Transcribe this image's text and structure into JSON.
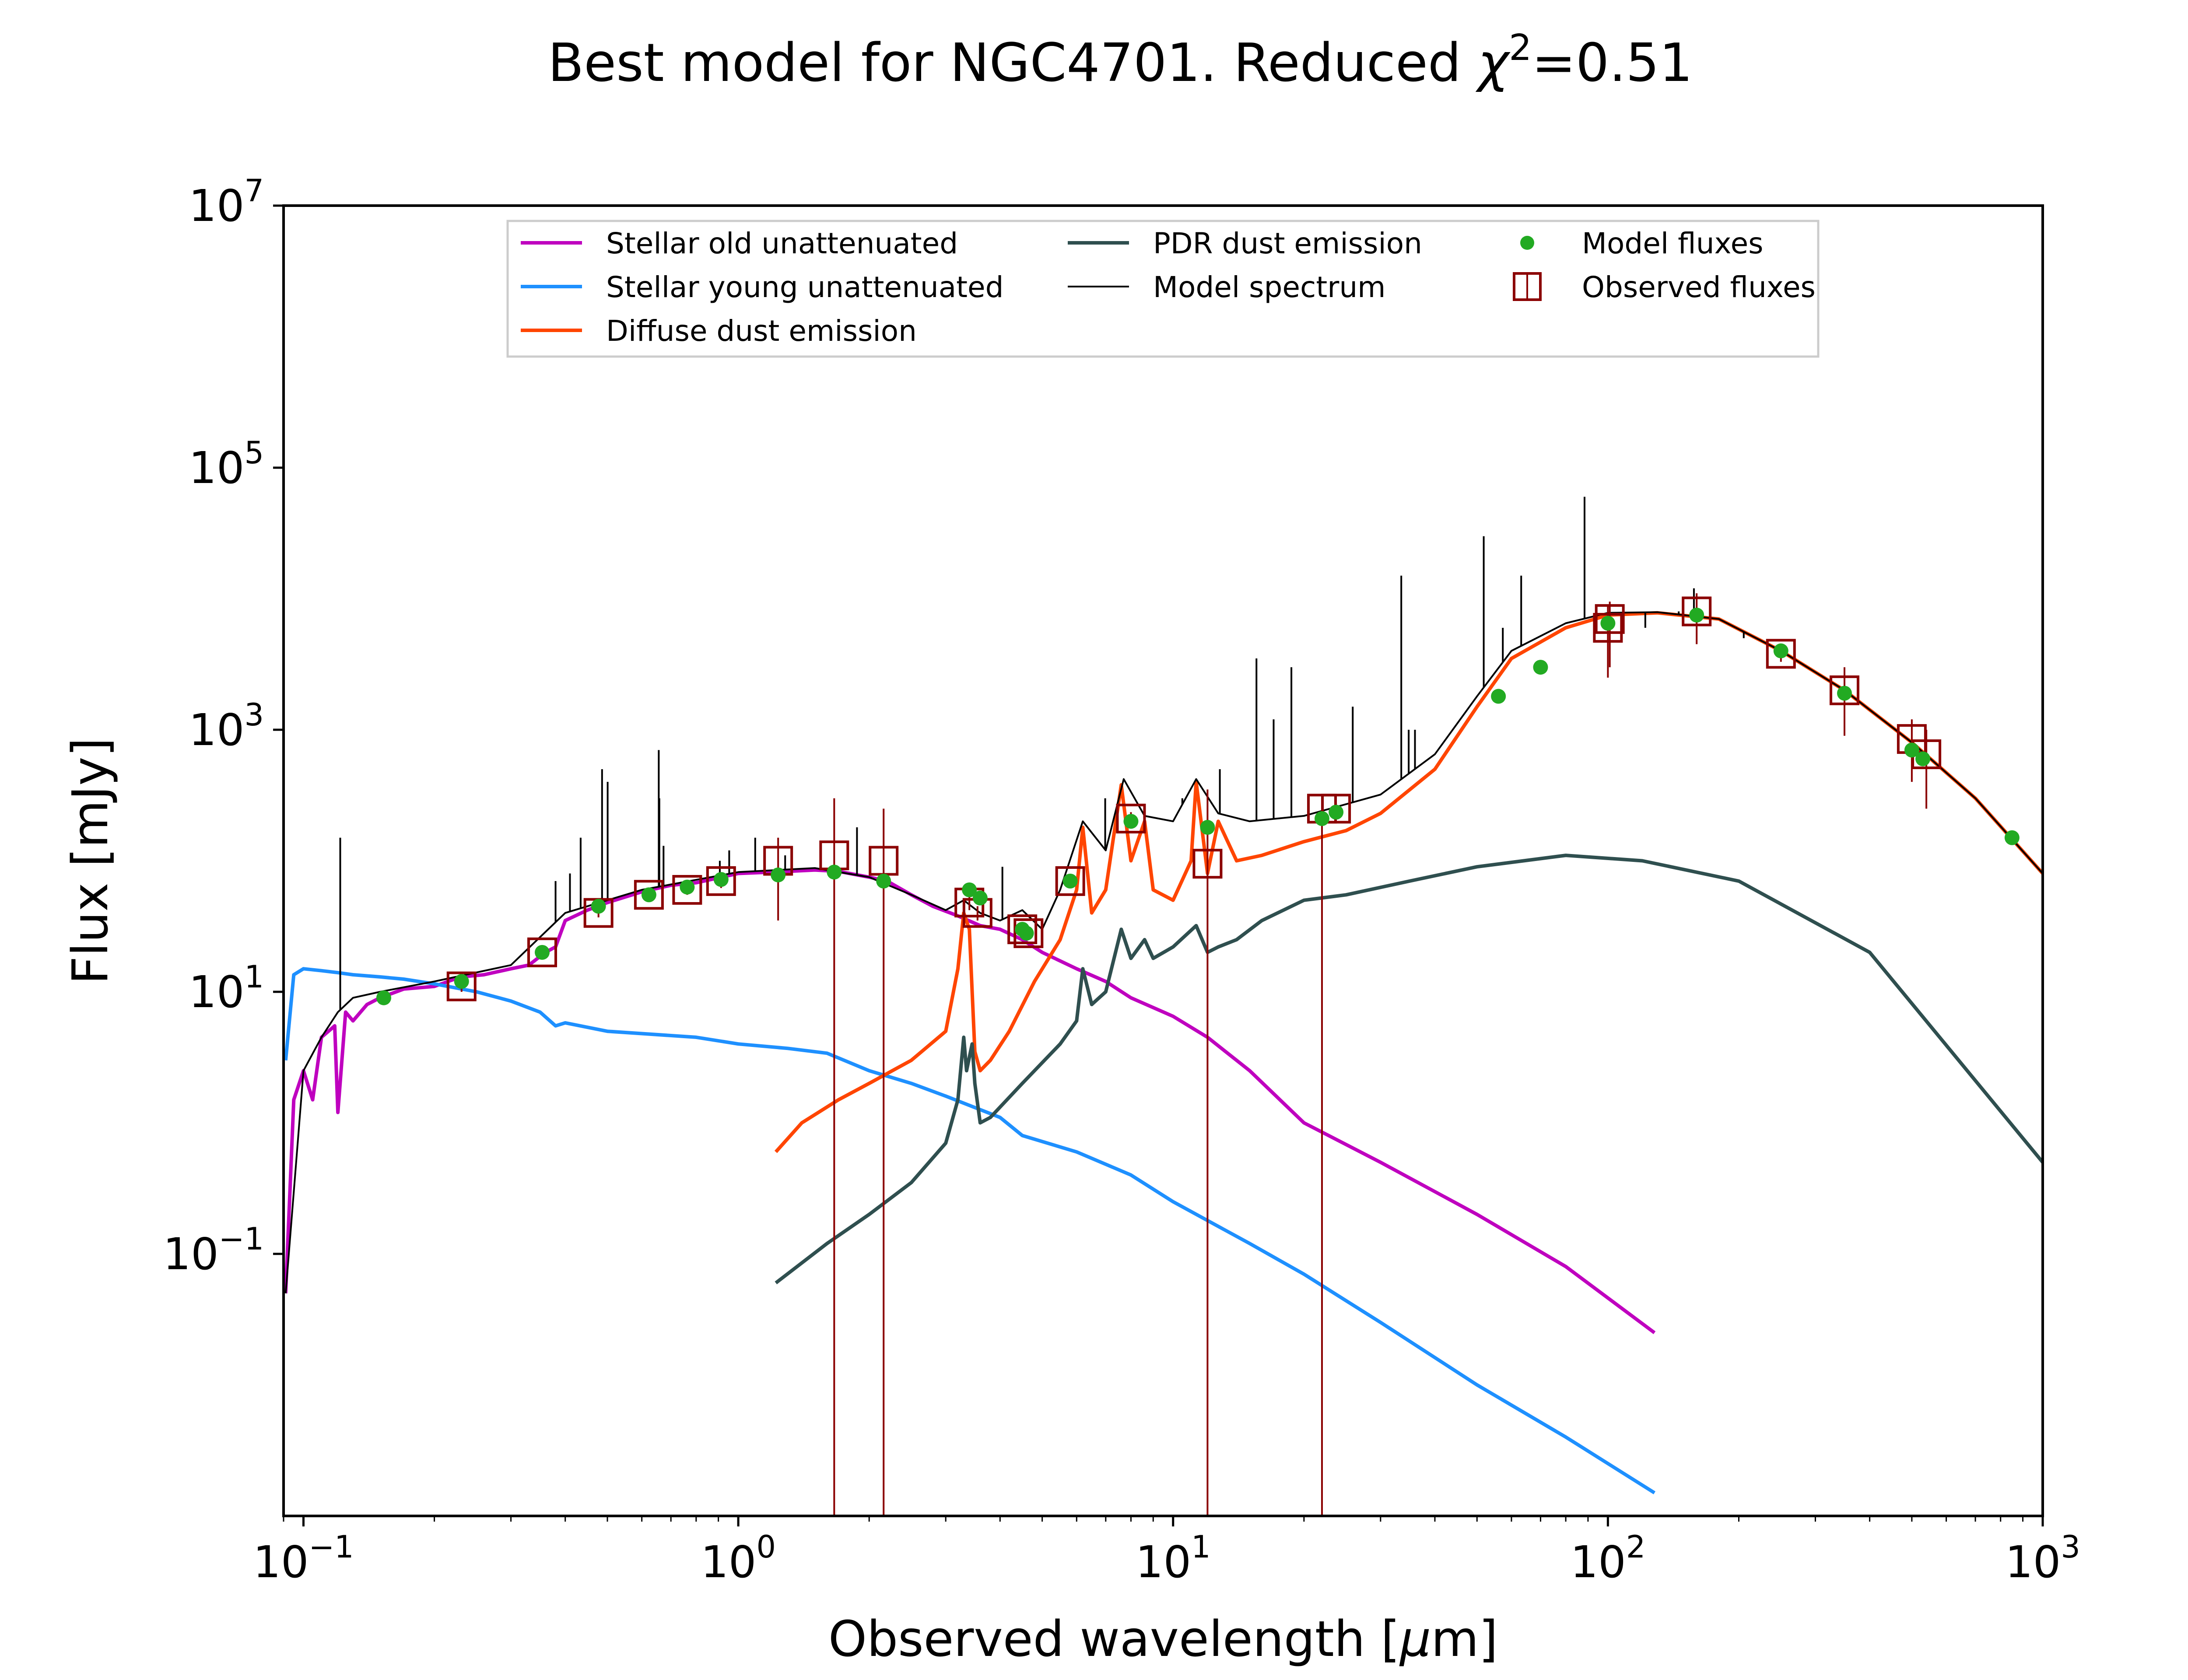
{
  "chart_data": {
    "type": "line",
    "title": {
      "text": "Best model for NGC4701. Reduced ",
      "chi_symbol": "χ",
      "chi_exp": "2",
      "value_text": "=0.51"
    },
    "xlabel": {
      "prefix": "Observed wavelength [",
      "mu": "μ",
      "suffix": "m]"
    },
    "ylabel": "Flux [mJy]",
    "xscale": "log",
    "yscale": "log",
    "xlim": [
      0.09,
      1000
    ],
    "ylim": [
      0.001,
      10000000
    ],
    "x_ticks": [
      {
        "value": 0.1,
        "base": "10",
        "exp": "−1"
      },
      {
        "value": 1,
        "base": "10",
        "exp": "0"
      },
      {
        "value": 10,
        "base": "10",
        "exp": "1"
      },
      {
        "value": 100,
        "base": "10",
        "exp": "2"
      },
      {
        "value": 1000,
        "base": "10",
        "exp": "3"
      }
    ],
    "y_ticks": [
      {
        "value": 0.1,
        "base": "10",
        "exp": "−1"
      },
      {
        "value": 10,
        "base": "10",
        "exp": "1"
      },
      {
        "value": 1000,
        "base": "10",
        "exp": "3"
      },
      {
        "value": 100000,
        "base": "10",
        "exp": "5"
      },
      {
        "value": 10000000,
        "base": "10",
        "exp": "7"
      }
    ],
    "legend": {
      "placement": "top-center",
      "columns": [
        [
          {
            "label": "Stellar old unattenuated",
            "kind": "line",
            "color": "#bf00bf"
          },
          {
            "label": "Stellar young unattenuated",
            "kind": "line",
            "color": "#1e90ff"
          },
          {
            "label": "Diffuse dust emission",
            "kind": "line",
            "color": "#ff4500"
          }
        ],
        [
          {
            "label": "PDR dust emission",
            "kind": "line",
            "color": "#2f4f4f"
          },
          {
            "label": "Model spectrum",
            "kind": "thinline",
            "color": "#000000"
          }
        ],
        [
          {
            "label": "Model fluxes",
            "kind": "dot",
            "color": "#22aa22"
          },
          {
            "label": "Observed fluxes",
            "kind": "square",
            "color": "#8b0000"
          }
        ]
      ]
    },
    "series": [
      {
        "name": "Stellar old unattenuated",
        "color": "#bf00bf",
        "x": [
          0.091,
          0.095,
          0.1,
          0.105,
          0.11,
          0.118,
          0.12,
          0.125,
          0.13,
          0.14,
          0.15,
          0.17,
          0.2,
          0.23,
          0.26,
          0.3,
          0.33,
          0.36,
          0.38,
          0.4,
          0.45,
          0.5,
          0.6,
          0.7,
          0.8,
          1.0,
          1.2,
          1.5,
          1.7,
          2.0,
          2.2,
          2.5,
          2.8,
          3.2,
          3.6,
          4.0,
          4.5,
          5.0,
          6.0,
          7.0,
          8.0,
          10,
          12,
          15,
          20,
          30,
          50,
          80,
          128
        ],
        "y": [
          0.05,
          1.5,
          2.5,
          1.5,
          4.5,
          5.5,
          1.2,
          7,
          6,
          8,
          9,
          10.5,
          11,
          13,
          13.5,
          15,
          16,
          20,
          22,
          35,
          42,
          48,
          58,
          65,
          68,
          80,
          82,
          85,
          83,
          75,
          70,
          55,
          45,
          38,
          32,
          30,
          25,
          20,
          15,
          12,
          9,
          6.5,
          4.5,
          2.5,
          1.0,
          0.5,
          0.2,
          0.08,
          0.025
        ]
      },
      {
        "name": "Stellar young unattenuated",
        "color": "#1e90ff",
        "x": [
          0.091,
          0.095,
          0.1,
          0.11,
          0.12,
          0.13,
          0.15,
          0.17,
          0.2,
          0.25,
          0.3,
          0.35,
          0.38,
          0.4,
          0.5,
          0.6,
          0.8,
          1.0,
          1.3,
          1.6,
          2.0,
          2.5,
          3.0,
          4.0,
          4.5,
          6.0,
          8.0,
          10,
          15,
          20,
          30,
          50,
          80,
          128
        ],
        "y": [
          3.0,
          13.5,
          15,
          14.5,
          14,
          13.5,
          13,
          12.5,
          11.5,
          10,
          8.5,
          7,
          5.5,
          5.8,
          5,
          4.8,
          4.5,
          4.0,
          3.7,
          3.4,
          2.5,
          2.0,
          1.6,
          1.1,
          0.8,
          0.6,
          0.4,
          0.25,
          0.12,
          0.07,
          0.03,
          0.01,
          0.004,
          0.0015
        ]
      },
      {
        "name": "Diffuse dust emission",
        "color": "#ff4500",
        "x": [
          1.22,
          1.4,
          1.7,
          2.0,
          2.5,
          3.0,
          3.2,
          3.3,
          3.4,
          3.5,
          3.6,
          3.8,
          4.2,
          4.8,
          5.5,
          6.0,
          6.2,
          6.5,
          7.0,
          7.6,
          8.0,
          8.6,
          9.0,
          10,
          11.0,
          11.3,
          12.0,
          12.7,
          14,
          16,
          20,
          25,
          30,
          40,
          50,
          60,
          80,
          100,
          130,
          180,
          250,
          350,
          500,
          700,
          1000
        ],
        "y": [
          0.6,
          1.0,
          1.5,
          2.0,
          3.0,
          5.0,
          15,
          40,
          30,
          3.5,
          2.5,
          3.0,
          5.0,
          12,
          25,
          60,
          180,
          40,
          60,
          380,
          100,
          200,
          60,
          50,
          100,
          400,
          80,
          200,
          100,
          110,
          140,
          170,
          230,
          500,
          1500,
          3500,
          6000,
          7500,
          7800,
          7000,
          4000,
          2000,
          800,
          300,
          80
        ]
      },
      {
        "name": "PDR dust emission",
        "color": "#2f4f4f",
        "x": [
          1.22,
          1.6,
          2.0,
          2.5,
          3.0,
          3.2,
          3.3,
          3.35,
          3.45,
          3.5,
          3.6,
          3.8,
          4.5,
          5.5,
          6.0,
          6.2,
          6.5,
          7.0,
          7.6,
          8.0,
          8.6,
          9.0,
          10,
          11.3,
          12.0,
          12.7,
          14,
          16,
          20,
          25,
          35,
          50,
          80,
          120,
          200,
          400,
          1000
        ],
        "y": [
          0.06,
          0.12,
          0.2,
          0.35,
          0.7,
          1.5,
          4.5,
          2.5,
          4.0,
          2.0,
          1.0,
          1.1,
          2.0,
          4.0,
          6.0,
          15,
          8,
          10,
          30,
          18,
          25,
          18,
          22,
          32,
          20,
          22,
          25,
          35,
          50,
          55,
          70,
          90,
          110,
          100,
          70,
          20,
          0.5
        ]
      },
      {
        "name": "Model spectrum",
        "color": "#000000",
        "x": [
          0.091,
          0.1,
          0.11,
          0.12,
          0.13,
          0.15,
          0.2,
          0.3,
          0.4,
          0.6,
          1.0,
          1.5,
          2.0,
          2.5,
          3.0,
          3.3,
          3.6,
          4.0,
          4.5,
          5.0,
          5.5,
          6.2,
          7.0,
          7.7,
          8.6,
          10,
          11.3,
          12.7,
          15,
          20,
          30,
          40,
          50,
          60,
          80,
          100,
          130,
          180,
          250,
          350,
          500,
          700,
          1000
        ],
        "y": [
          0.05,
          2.5,
          4.5,
          7,
          9,
          10,
          12,
          16,
          40,
          60,
          82,
          88,
          75,
          55,
          42,
          50,
          40,
          35,
          42,
          30,
          60,
          200,
          120,
          420,
          220,
          200,
          420,
          230,
          200,
          220,
          320,
          650,
          1800,
          4000,
          6500,
          7800,
          7900,
          7000,
          4000,
          2000,
          800,
          300,
          80
        ]
      }
    ],
    "model_spectrum_lines": [
      {
        "x": 0.1215,
        "top": 150
      },
      {
        "x": 0.38,
        "top": 70
      },
      {
        "x": 0.4101,
        "top": 80
      },
      {
        "x": 0.434,
        "top": 150
      },
      {
        "x": 0.4861,
        "top": 500
      },
      {
        "x": 0.5007,
        "top": 400
      },
      {
        "x": 0.6563,
        "top": 700
      },
      {
        "x": 0.6584,
        "top": 300
      },
      {
        "x": 0.6731,
        "top": 130
      },
      {
        "x": 0.9069,
        "top": 100
      },
      {
        "x": 0.9531,
        "top": 120
      },
      {
        "x": 1.0938,
        "top": 150
      },
      {
        "x": 1.2818,
        "top": 110
      },
      {
        "x": 1.8751,
        "top": 180
      },
      {
        "x": 4.05,
        "top": 90
      },
      {
        "x": 6.98,
        "top": 300
      },
      {
        "x": 10.5,
        "top": 300
      },
      {
        "x": 12.81,
        "top": 500
      },
      {
        "x": 15.55,
        "top": 3500
      },
      {
        "x": 17.03,
        "top": 1200
      },
      {
        "x": 18.71,
        "top": 3000
      },
      {
        "x": 25.89,
        "top": 1500
      },
      {
        "x": 33.48,
        "top": 15000
      },
      {
        "x": 34.82,
        "top": 1000
      },
      {
        "x": 36.0,
        "top": 1000
      },
      {
        "x": 51.81,
        "top": 30000
      },
      {
        "x": 57.32,
        "top": 6000
      },
      {
        "x": 63.18,
        "top": 15000
      },
      {
        "x": 88.36,
        "top": 60000
      },
      {
        "x": 121.9,
        "top": 6000
      },
      {
        "x": 145.5,
        "top": 8000
      },
      {
        "x": 157.7,
        "top": 12000
      },
      {
        "x": 205.3,
        "top": 5000
      }
    ],
    "model_fluxes": {
      "color": "#22aa22",
      "x": [
        0.153,
        0.231,
        0.354,
        0.477,
        0.623,
        0.763,
        0.913,
        1.235,
        1.662,
        2.159,
        3.4,
        3.6,
        4.5,
        4.6,
        5.8,
        8.0,
        12.0,
        22.0,
        23.7,
        56,
        70,
        100,
        160,
        250,
        350,
        500,
        530,
        850
      ],
      "y": [
        9.0,
        12.0,
        20.0,
        45.0,
        55.0,
        63.0,
        72.0,
        78.0,
        82.0,
        70.0,
        60.0,
        52.0,
        30.0,
        28.0,
        70.0,
        200.0,
        180.0,
        210.0,
        235.0,
        1800.0,
        3000.0,
        6500.0,
        7500.0,
        4000.0,
        1900.0,
        700.0,
        600.0,
        150.0
      ]
    },
    "observed_fluxes": {
      "color": "#8b0000",
      "points": [
        {
          "x": 0.231,
          "y": 11.0,
          "lo": 10.0,
          "hi": 12.0
        },
        {
          "x": 0.354,
          "y": 20.0,
          "lo": 18.0,
          "hi": 22.0
        },
        {
          "x": 0.477,
          "y": 40.0,
          "lo": 37.0,
          "hi": 43.0
        },
        {
          "x": 0.623,
          "y": 55.0,
          "lo": 50.0,
          "hi": 60.0
        },
        {
          "x": 0.763,
          "y": 60.0,
          "lo": 55.0,
          "hi": 65.0
        },
        {
          "x": 0.913,
          "y": 70.0,
          "lo": 62.0,
          "hi": 78.0
        },
        {
          "x": 1.235,
          "y": 100.0,
          "lo": 35.0,
          "hi": 150.0
        },
        {
          "x": 1.662,
          "y": 110.0,
          "lo": 0.001,
          "hi": 300.0
        },
        {
          "x": 2.159,
          "y": 100.0,
          "lo": 0.001,
          "hi": 250.0
        },
        {
          "x": 3.4,
          "y": 48.0,
          "lo": 42.0,
          "hi": 54.0
        },
        {
          "x": 3.55,
          "y": 40.0,
          "lo": 35.0,
          "hi": 45.0
        },
        {
          "x": 4.5,
          "y": 30.0,
          "lo": 27.0,
          "hi": 33.0
        },
        {
          "x": 4.65,
          "y": 28.0,
          "lo": 25.0,
          "hi": 31.0
        },
        {
          "x": 5.8,
          "y": 70.0,
          "lo": 62.0,
          "hi": 78.0
        },
        {
          "x": 8.0,
          "y": 210.0,
          "lo": 185.0,
          "hi": 235.0
        },
        {
          "x": 12.0,
          "y": 95.0,
          "lo": 0.001,
          "hi": 350.0
        },
        {
          "x": 22.0,
          "y": 250.0,
          "lo": 0.001,
          "hi": 320.0
        },
        {
          "x": 23.7,
          "y": 250.0,
          "lo": 225.0,
          "hi": 275.0
        },
        {
          "x": 100,
          "y": 6000.0,
          "lo": 2500.0,
          "hi": 9000.0
        },
        {
          "x": 101,
          "y": 7000.0,
          "lo": 3000.0,
          "hi": 9500.0
        },
        {
          "x": 160,
          "y": 8000.0,
          "lo": 4500.0,
          "hi": 11000.0
        },
        {
          "x": 250,
          "y": 3800.0,
          "lo": 3300.0,
          "hi": 4300.0
        },
        {
          "x": 350,
          "y": 2000.0,
          "lo": 900.0,
          "hi": 3000.0
        },
        {
          "x": 500,
          "y": 850.0,
          "lo": 400.0,
          "hi": 1200.0
        },
        {
          "x": 540,
          "y": 650.0,
          "lo": 250.0,
          "hi": 1000.0
        }
      ]
    }
  }
}
